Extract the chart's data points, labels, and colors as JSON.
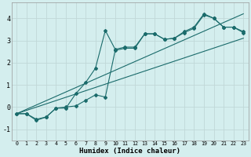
{
  "xlabel": "Humidex (Indice chaleur)",
  "bg_color": "#d4eeee",
  "grid_color": "#c0d8d8",
  "line_color": "#1a6b6b",
  "xlim": [
    -0.5,
    23.5
  ],
  "ylim": [
    -1.5,
    4.7
  ],
  "xticks": [
    0,
    1,
    2,
    3,
    4,
    5,
    6,
    7,
    8,
    9,
    10,
    11,
    12,
    13,
    14,
    15,
    16,
    17,
    18,
    19,
    20,
    21,
    22,
    23
  ],
  "yticks": [
    -1,
    0,
    1,
    2,
    3,
    4
  ],
  "series1_x": [
    0,
    1,
    2,
    3,
    4,
    5,
    6,
    7,
    8,
    9,
    10,
    11,
    12,
    13,
    14,
    15,
    16,
    17,
    18,
    19,
    20,
    21,
    22,
    23
  ],
  "series1_y": [
    -0.3,
    -0.3,
    -0.55,
    -0.45,
    -0.05,
    -0.05,
    0.6,
    1.1,
    1.75,
    3.45,
    2.6,
    2.7,
    2.7,
    3.3,
    3.3,
    3.05,
    3.1,
    3.4,
    3.6,
    4.2,
    4.0,
    3.6,
    3.6,
    3.35
  ],
  "series2_x": [
    0,
    1,
    2,
    3,
    4,
    5,
    6,
    7,
    8,
    9,
    10,
    11,
    12,
    13,
    14,
    15,
    16,
    17,
    18,
    19,
    20,
    21,
    22,
    23
  ],
  "series2_y": [
    -0.3,
    -0.3,
    -0.6,
    -0.45,
    -0.05,
    0.0,
    0.05,
    0.3,
    0.55,
    0.45,
    2.55,
    2.65,
    2.65,
    3.3,
    3.3,
    3.05,
    3.1,
    3.35,
    3.55,
    4.15,
    4.0,
    3.6,
    3.6,
    3.4
  ],
  "series3_x": [
    0,
    23
  ],
  "series3_y": [
    -0.3,
    4.2
  ],
  "series4_x": [
    0,
    23
  ],
  "series4_y": [
    -0.3,
    3.1
  ]
}
